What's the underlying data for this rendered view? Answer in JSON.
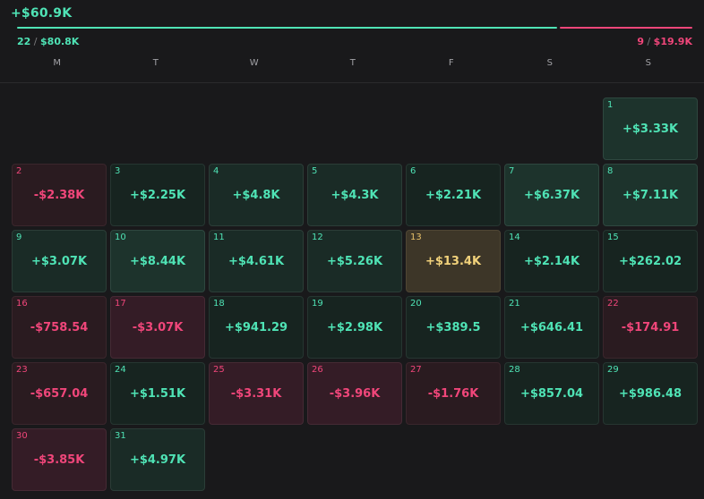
{
  "summary": {
    "net_total": "+$60.9K",
    "win_days": "22",
    "win_amount": "$80.8K",
    "loss_days": "9",
    "loss_amount": "$19.9K",
    "separator": " / "
  },
  "weekdays": [
    "M",
    "T",
    "W",
    "T",
    "F",
    "S",
    "S"
  ],
  "colors": {
    "profit": "#4fe3b5",
    "loss": "#f0467a",
    "best_day": "#f2d27b",
    "background": "#19191b"
  },
  "days": [
    {
      "day": "1",
      "pnl": "+$3.33K",
      "tone": "pos3"
    },
    {
      "day": "2",
      "pnl": "-$2.38K",
      "tone": "neg1"
    },
    {
      "day": "3",
      "pnl": "+$2.25K",
      "tone": "pos1"
    },
    {
      "day": "4",
      "pnl": "+$4.8K",
      "tone": "pos2"
    },
    {
      "day": "5",
      "pnl": "+$4.3K",
      "tone": "pos2"
    },
    {
      "day": "6",
      "pnl": "+$2.21K",
      "tone": "pos1"
    },
    {
      "day": "7",
      "pnl": "+$6.37K",
      "tone": "pos3"
    },
    {
      "day": "8",
      "pnl": "+$7.11K",
      "tone": "pos3"
    },
    {
      "day": "9",
      "pnl": "+$3.07K",
      "tone": "pos2"
    },
    {
      "day": "10",
      "pnl": "+$8.44K",
      "tone": "pos3"
    },
    {
      "day": "11",
      "pnl": "+$4.61K",
      "tone": "pos2"
    },
    {
      "day": "12",
      "pnl": "+$5.26K",
      "tone": "pos2"
    },
    {
      "day": "13",
      "pnl": "+$13.4K",
      "tone": "best"
    },
    {
      "day": "14",
      "pnl": "+$2.14K",
      "tone": "pos1"
    },
    {
      "day": "15",
      "pnl": "+$262.02",
      "tone": "pos1"
    },
    {
      "day": "16",
      "pnl": "-$758.54",
      "tone": "neg1"
    },
    {
      "day": "17",
      "pnl": "-$3.07K",
      "tone": "neg2"
    },
    {
      "day": "18",
      "pnl": "+$941.29",
      "tone": "pos1"
    },
    {
      "day": "19",
      "pnl": "+$2.98K",
      "tone": "pos1"
    },
    {
      "day": "20",
      "pnl": "+$389.5",
      "tone": "pos1"
    },
    {
      "day": "21",
      "pnl": "+$646.41",
      "tone": "pos1"
    },
    {
      "day": "22",
      "pnl": "-$174.91",
      "tone": "neg1"
    },
    {
      "day": "23",
      "pnl": "-$657.04",
      "tone": "neg1"
    },
    {
      "day": "24",
      "pnl": "+$1.51K",
      "tone": "pos1"
    },
    {
      "day": "25",
      "pnl": "-$3.31K",
      "tone": "neg2"
    },
    {
      "day": "26",
      "pnl": "-$3.96K",
      "tone": "neg2"
    },
    {
      "day": "27",
      "pnl": "-$1.76K",
      "tone": "neg1"
    },
    {
      "day": "28",
      "pnl": "+$857.04",
      "tone": "pos1"
    },
    {
      "day": "29",
      "pnl": "+$986.48",
      "tone": "pos1"
    },
    {
      "day": "30",
      "pnl": "-$3.85K",
      "tone": "neg2"
    },
    {
      "day": "31",
      "pnl": "+$4.97K",
      "tone": "pos2"
    }
  ]
}
